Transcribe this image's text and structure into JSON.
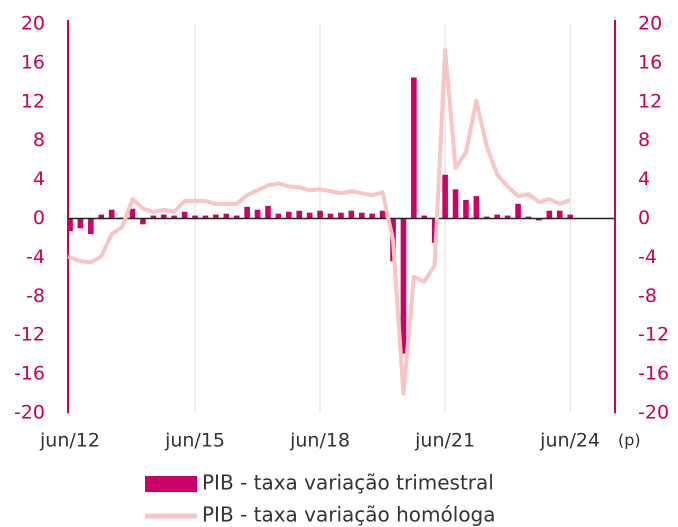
{
  "chart_data": {
    "type": "bar",
    "categories": [
      "jun/12",
      null,
      null,
      null,
      null,
      null,
      null,
      null,
      null,
      null,
      null,
      null,
      "jun/15",
      null,
      null,
      null,
      null,
      null,
      null,
      null,
      null,
      null,
      null,
      null,
      "jun/18",
      null,
      null,
      null,
      null,
      null,
      null,
      null,
      null,
      null,
      null,
      null,
      "jun/21",
      null,
      null,
      null,
      null,
      null,
      null,
      null,
      null,
      null,
      null,
      null,
      "jun/24"
    ],
    "series": [
      {
        "name": "PIB - taxa variação trimestral",
        "type": "bar",
        "color": "#cc0066",
        "values": [
          -1.3,
          -1.0,
          -1.6,
          0.4,
          0.9,
          0.1,
          1.0,
          -0.6,
          0.3,
          0.4,
          0.3,
          0.7,
          0.3,
          0.3,
          0.4,
          0.5,
          0.3,
          1.2,
          0.9,
          1.3,
          0.5,
          0.7,
          0.8,
          0.6,
          0.8,
          0.5,
          0.6,
          0.8,
          0.6,
          0.5,
          0.8,
          -4.4,
          -13.9,
          14.5,
          0.3,
          -2.5,
          4.5,
          3.0,
          1.9,
          2.3,
          0.2,
          0.4,
          0.3,
          1.5,
          0.2,
          -0.2,
          0.8,
          0.8,
          0.4
        ]
      },
      {
        "name": "PIB - taxa variação homóloga",
        "type": "line",
        "axis": "y2",
        "color": "#f8c4c4",
        "values": [
          -3.9,
          -4.4,
          -4.5,
          -3.9,
          -1.6,
          -0.9,
          2.0,
          1.0,
          0.7,
          0.9,
          0.7,
          1.8,
          1.8,
          1.8,
          1.5,
          1.5,
          1.5,
          2.4,
          2.9,
          3.4,
          3.6,
          3.3,
          3.2,
          2.9,
          3.0,
          2.8,
          2.6,
          2.8,
          2.6,
          2.4,
          2.7,
          -2.2,
          -18.0,
          -6.0,
          -6.5,
          -4.8,
          17.3,
          5.2,
          6.8,
          12.1,
          7.4,
          4.5,
          3.3,
          2.3,
          2.5,
          1.7,
          2.0,
          1.5,
          1.9
        ]
      }
    ],
    "annotation": "(p)",
    "ylim": [
      -20,
      20
    ],
    "yticks": [
      -20,
      -16,
      -12,
      -8,
      -4,
      0,
      4,
      8,
      12,
      16,
      20
    ],
    "y2lim": [
      -20,
      20
    ],
    "y2ticks": [
      -20,
      -16,
      -12,
      -8,
      -4,
      0,
      4,
      8,
      12,
      16,
      20
    ],
    "xgrid": true,
    "legend": "bottom"
  }
}
